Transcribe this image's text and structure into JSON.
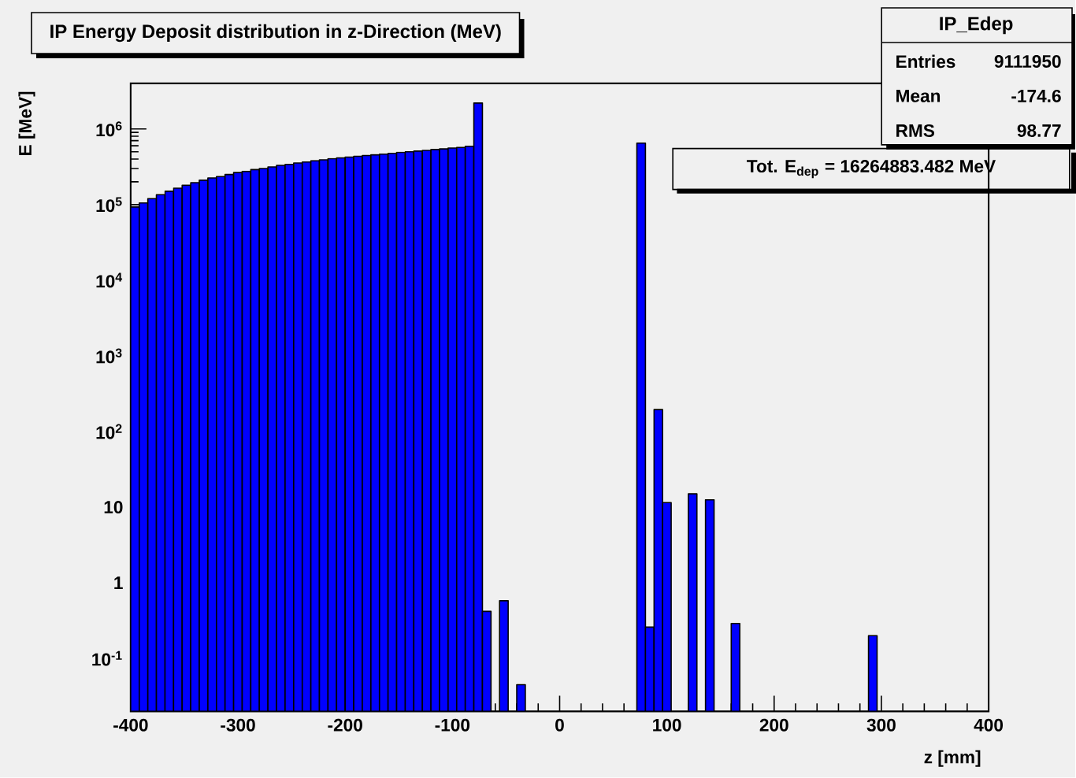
{
  "chart_data": {
    "type": "histogram",
    "title": "IP Energy Deposit distribution in z-Direction (MeV)",
    "xlabel": "z [mm]",
    "ylabel": "E [MeV]",
    "color": "#0000ff",
    "log": "y",
    "grid": false,
    "bins": [
      -400,
      -392,
      -384,
      -376,
      -368,
      -360,
      -352,
      -344,
      -336,
      -328,
      -320,
      -312,
      -304,
      -296,
      -288,
      -280,
      -272,
      -264,
      -256,
      -248,
      -240,
      -232,
      -224,
      -216,
      -208,
      -200,
      -192,
      -184,
      -176,
      -168,
      -160,
      -152,
      -144,
      -136,
      -128,
      -120,
      -112,
      -104,
      -96,
      -88,
      -80,
      -72,
      -64,
      -56,
      -48,
      -40,
      -32,
      -24,
      -16,
      -8,
      0,
      8,
      16,
      24,
      32,
      40,
      48,
      56,
      64,
      72,
      80,
      88,
      96,
      104,
      112,
      120,
      128,
      136,
      144,
      152,
      160,
      168,
      176,
      184,
      192,
      200,
      208,
      216,
      224,
      232,
      240,
      248,
      256,
      264,
      272,
      280,
      288,
      296,
      304,
      312,
      320,
      328,
      336,
      344,
      352,
      360,
      368,
      376,
      384,
      392,
      400
    ],
    "values": [
      93000,
      105000,
      120000,
      135000,
      150000,
      165000,
      180000,
      195000,
      210000,
      225000,
      235000,
      250000,
      265000,
      275000,
      290000,
      300000,
      315000,
      330000,
      340000,
      355000,
      365000,
      380000,
      390000,
      405000,
      415000,
      425000,
      435000,
      445000,
      455000,
      465000,
      475000,
      490000,
      500000,
      510000,
      520000,
      535000,
      545000,
      560000,
      570000,
      590000,
      2200000,
      0.42,
      null,
      0.58,
      null,
      0.045,
      null,
      null,
      null,
      null,
      null,
      null,
      null,
      null,
      null,
      null,
      null,
      null,
      null,
      650000,
      0.26,
      195,
      11.5,
      null,
      null,
      15,
      null,
      12.5,
      null,
      null,
      0.29,
      null,
      null,
      null,
      null,
      null,
      null,
      null,
      null,
      null,
      null,
      null,
      null,
      null,
      null,
      null,
      0.2,
      null,
      null,
      null,
      null,
      null,
      null,
      null,
      null,
      null,
      null,
      null,
      null,
      null
    ],
    "xlim": [
      -400,
      400
    ],
    "xticks": [
      -400,
      -300,
      -200,
      -100,
      0,
      100,
      200,
      300,
      400
    ],
    "ylim": [
      0.02,
      4000000
    ],
    "yticks": [
      {
        "value": 0.1,
        "label": "10$^{-1}$"
      },
      1,
      10,
      {
        "value": 100,
        "label": "10$^{2}$"
      },
      {
        "value": 1000,
        "label": "10$^{3}$"
      },
      {
        "value": 10000,
        "label": "10$^{4}$"
      },
      {
        "value": 100000,
        "label": "10$^{5}$"
      },
      {
        "value": 1000000,
        "label": "10$^{6}$"
      }
    ],
    "annotations": [
      "IP_Edep",
      "Entries",
      "9111950",
      "Mean",
      "-174.6",
      "RMS",
      "98.77",
      "Tot. E$_{dep}$ = 16264883.482 MeV"
    ]
  }
}
